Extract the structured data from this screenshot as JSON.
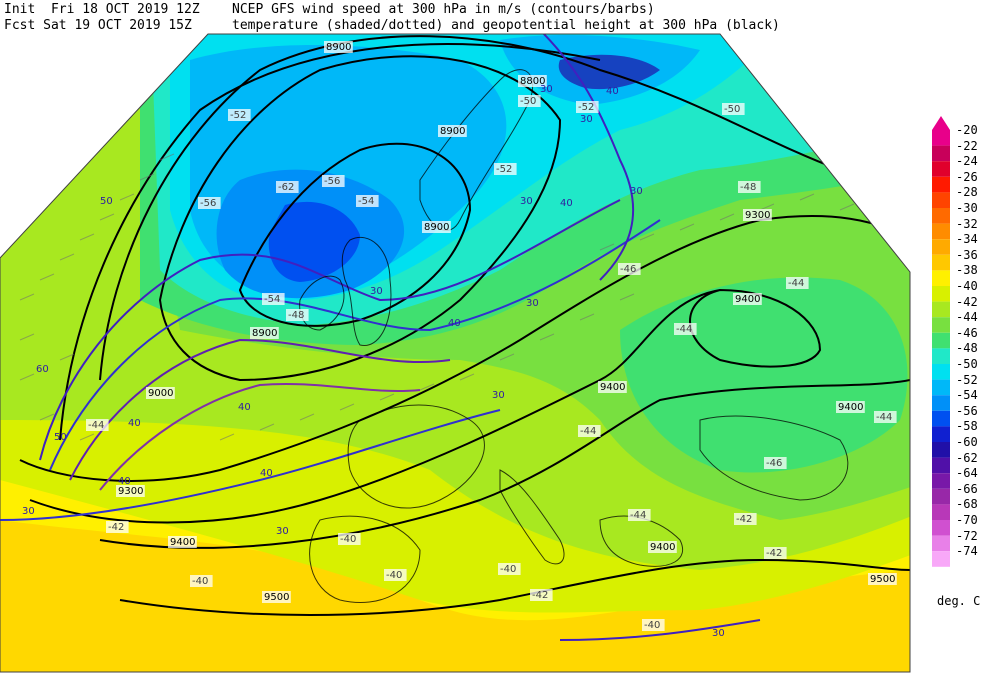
{
  "header": {
    "line1_left": "Init  Fri 18 OCT 2019 12Z",
    "line2_left": "Fcst Sat 19 OCT 2019 15Z",
    "line1_right": "NCEP GFS wind speed at 300 hPa in m/s (contours/barbs)",
    "line2_right": "temperature (shaded/dotted) and geopotential height at 300 hPa (black)"
  },
  "colorbar": {
    "units": "deg. C",
    "levels": [
      {
        "label": "-20",
        "color": "#e8008a"
      },
      {
        "label": "-22",
        "color": "#c8005a"
      },
      {
        "label": "-24",
        "color": "#e0002c"
      },
      {
        "label": "-26",
        "color": "#ff1a00"
      },
      {
        "label": "-28",
        "color": "#ff4400"
      },
      {
        "label": "-30",
        "color": "#ff6a00"
      },
      {
        "label": "-32",
        "color": "#ff8c00"
      },
      {
        "label": "-34",
        "color": "#ffaa00"
      },
      {
        "label": "-36",
        "color": "#ffc800"
      },
      {
        "label": "-38",
        "color": "#fff000"
      },
      {
        "label": "-40",
        "color": "#d8f000"
      },
      {
        "label": "-42",
        "color": "#a8e820"
      },
      {
        "label": "-44",
        "color": "#78e040"
      },
      {
        "label": "-46",
        "color": "#40e070"
      },
      {
        "label": "-48",
        "color": "#20e8c8"
      },
      {
        "label": "-50",
        "color": "#00e0f0"
      },
      {
        "label": "-52",
        "color": "#00b8f8"
      },
      {
        "label": "-54",
        "color": "#0090f8"
      },
      {
        "label": "-56",
        "color": "#0050f0"
      },
      {
        "label": "-58",
        "color": "#1020d0"
      },
      {
        "label": "-60",
        "color": "#2010a8"
      },
      {
        "label": "-62",
        "color": "#5010a8"
      },
      {
        "label": "-64",
        "color": "#7818a8"
      },
      {
        "label": "-66",
        "color": "#9828a8"
      },
      {
        "label": "-68",
        "color": "#b838b8"
      },
      {
        "label": "-70",
        "color": "#d050d0"
      },
      {
        "label": "-72",
        "color": "#e880e8"
      },
      {
        "label": "-74",
        "color": "#f8a8f8"
      }
    ]
  },
  "height_labels": [
    "8900",
    "8800",
    "8900",
    "8900",
    "8900",
    "9000",
    "9300",
    "9300",
    "9400",
    "9400",
    "9400",
    "9400",
    "9400",
    "9500",
    "9500"
  ],
  "wind_labels": [
    "30",
    "40",
    "30",
    "30",
    "30",
    "30",
    "40",
    "40",
    "40",
    "30",
    "30",
    "40",
    "30",
    "50",
    "50",
    "60",
    "40",
    "40",
    "30",
    "30"
  ],
  "temp_labels": [
    "-52",
    "-56",
    "-62",
    "-56",
    "-54",
    "-52",
    "-50",
    "-48",
    "-46",
    "-44",
    "-44",
    "-44",
    "-44",
    "-42",
    "-42",
    "-40",
    "-40",
    "-40",
    "-42",
    "-40",
    "-54",
    "-48",
    "-52",
    "-50",
    "-46",
    "-44",
    "-42",
    "-40",
    "-44"
  ]
}
